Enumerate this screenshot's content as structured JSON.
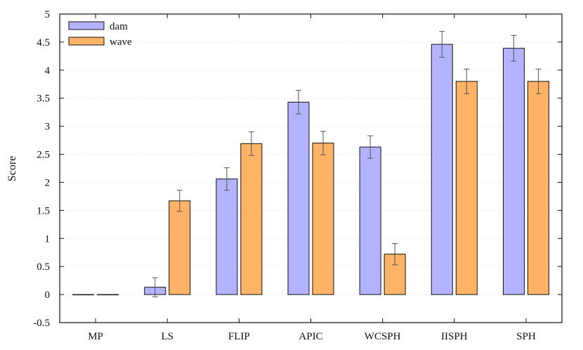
{
  "chart_data": {
    "type": "bar",
    "title": "",
    "xlabel": "",
    "ylabel": "Score",
    "ylim": [
      -0.5,
      5
    ],
    "yticks": [
      -0.5,
      0,
      0.5,
      1,
      1.5,
      2,
      2.5,
      3,
      3.5,
      4,
      4.5,
      5
    ],
    "ytick_labels": [
      "-0.5",
      "0",
      "0.5",
      "1",
      "1.5",
      "2",
      "2.5",
      "3",
      "3.5",
      "4",
      "4.5",
      "5"
    ],
    "grid": true,
    "legend": "top-left",
    "categories": [
      "MP",
      "LS",
      "FLIP",
      "APIC",
      "WCSPH",
      "IISPH",
      "SPH"
    ],
    "series": [
      {
        "name": "dam",
        "color": "#b3b3ff",
        "values": [
          0,
          0.13,
          2.06,
          3.43,
          2.63,
          4.46,
          4.39
        ],
        "errors": [
          0,
          0.17,
          0.2,
          0.21,
          0.2,
          0.23,
          0.23
        ]
      },
      {
        "name": "wave",
        "color": "#ffb366",
        "values": [
          0,
          1.67,
          2.69,
          2.7,
          0.72,
          3.8,
          3.8
        ],
        "errors": [
          0,
          0.19,
          0.21,
          0.21,
          0.19,
          0.22,
          0.22
        ]
      }
    ]
  }
}
